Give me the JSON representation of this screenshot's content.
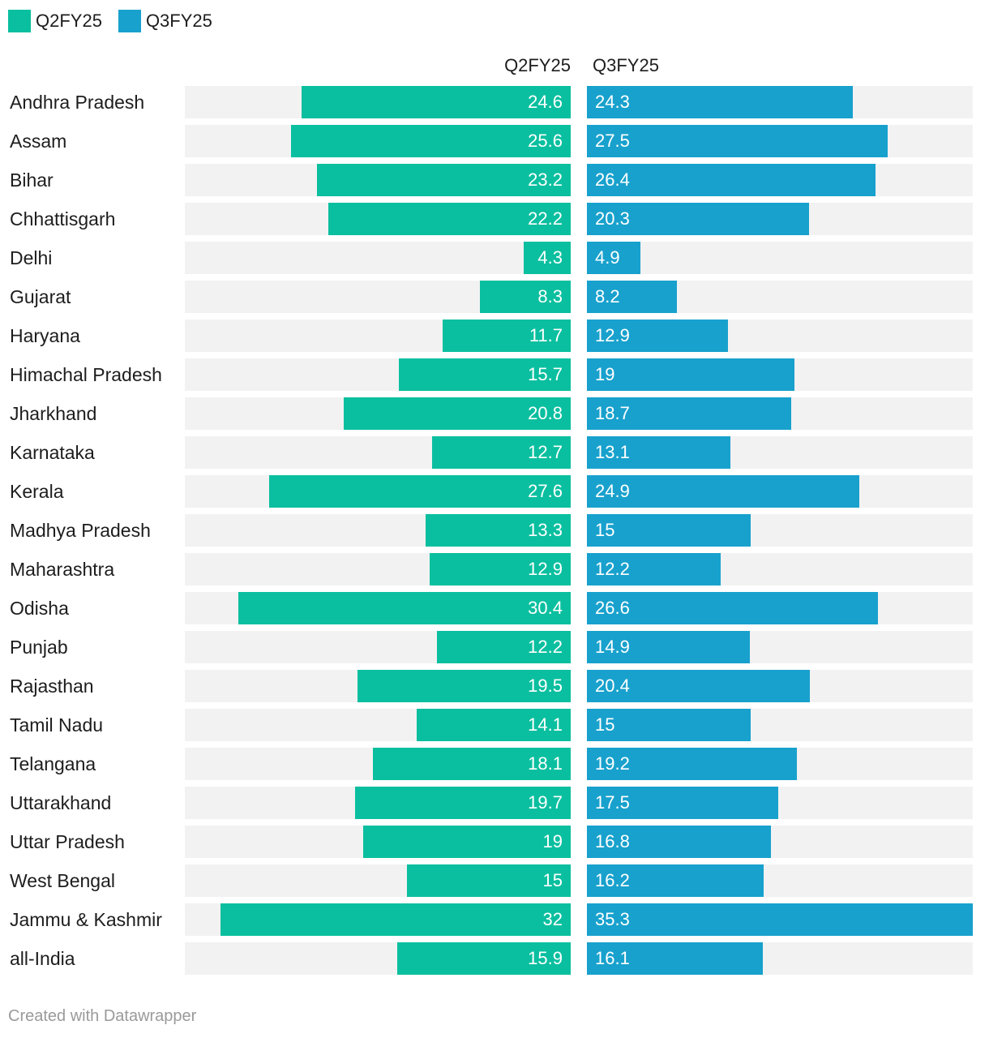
{
  "legend": [
    {
      "name": "Q2FY25",
      "color": "#0abf9f"
    },
    {
      "name": "Q3FY25",
      "color": "#18a1cd"
    }
  ],
  "footer": "Created with Datawrapper",
  "chart_data": {
    "type": "bar",
    "orientation": "horizontal-split",
    "column_headers": [
      "Q2FY25",
      "Q3FY25"
    ],
    "xlim": [
      0,
      35.3
    ],
    "grid": false,
    "legend_position": "top-left",
    "categories": [
      "Andhra Pradesh",
      "Assam",
      "Bihar",
      "Chhattisgarh",
      "Delhi",
      "Gujarat",
      "Haryana",
      "Himachal Pradesh",
      "Jharkhand",
      "Karnataka",
      "Kerala",
      "Madhya Pradesh",
      "Maharashtra",
      "Odisha",
      "Punjab",
      "Rajasthan",
      "Tamil Nadu",
      "Telangana",
      "Uttarakhand",
      "Uttar Pradesh",
      "West Bengal",
      "Jammu & Kashmir",
      "all-India"
    ],
    "series": [
      {
        "name": "Q2FY25",
        "color": "#0abf9f",
        "values": [
          24.6,
          25.6,
          23.2,
          22.2,
          4.3,
          8.3,
          11.7,
          15.7,
          20.8,
          12.7,
          27.6,
          13.3,
          12.9,
          30.4,
          12.2,
          19.5,
          14.1,
          18.1,
          19.7,
          19,
          15,
          32,
          15.9
        ]
      },
      {
        "name": "Q3FY25",
        "color": "#18a1cd",
        "values": [
          24.3,
          27.5,
          26.4,
          20.3,
          4.9,
          8.2,
          12.9,
          19,
          18.7,
          13.1,
          24.9,
          15,
          12.2,
          26.6,
          14.9,
          20.4,
          15,
          19.2,
          17.5,
          16.8,
          16.2,
          35.3,
          16.1
        ]
      }
    ]
  }
}
